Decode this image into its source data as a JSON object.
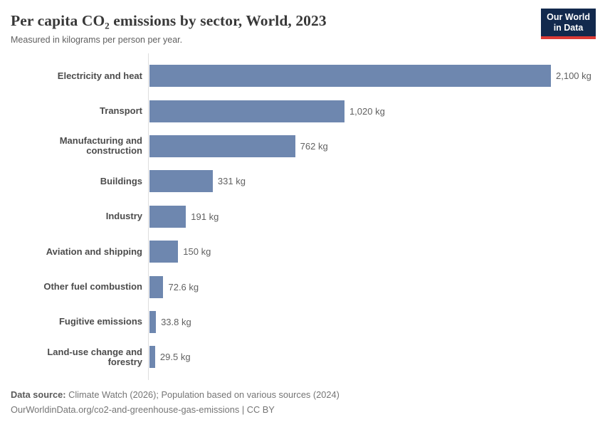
{
  "header": {
    "title": "Per capita CO₂ emissions by sector, World, 2023",
    "subtitle": "Measured in kilograms per person per year.",
    "logo": {
      "line1": "Our World",
      "line2": "in Data"
    }
  },
  "chart_data": {
    "type": "bar",
    "orientation": "horizontal",
    "title": "Per capita CO₂ emissions by sector, World, 2023",
    "subtitle": "Measured in kilograms per person per year.",
    "unit": "kg",
    "xlabel": "",
    "ylabel": "",
    "xlim": [
      0,
      2100
    ],
    "grid": false,
    "legend": "none",
    "bar_color": "#6e87af",
    "categories": [
      "Electricity and heat",
      "Transport",
      "Manufacturing and construction",
      "Buildings",
      "Industry",
      "Aviation and shipping",
      "Other fuel combustion",
      "Fugitive emissions",
      "Land-use change and forestry"
    ],
    "values": [
      2100,
      1020,
      762,
      331,
      191,
      150,
      72.6,
      33.8,
      29.5
    ],
    "value_labels": [
      "2,100 kg",
      "1,020 kg",
      "762 kg",
      "331 kg",
      "191 kg",
      "150 kg",
      "72.6 kg",
      "33.8 kg",
      "29.5 kg"
    ]
  },
  "footer": {
    "source_label": "Data source:",
    "source_text": " Climate Watch (2026); Population based on various sources (2024)",
    "url_line": "OurWorldinData.org/co2-and-greenhouse-gas-emissions | CC BY"
  },
  "colors": {
    "bar": "#6e87af",
    "title": "#383838",
    "subtitle": "#616161",
    "axis_line": "#dedede",
    "logo_bg": "#12294d",
    "logo_accent": "#dc3a35"
  }
}
